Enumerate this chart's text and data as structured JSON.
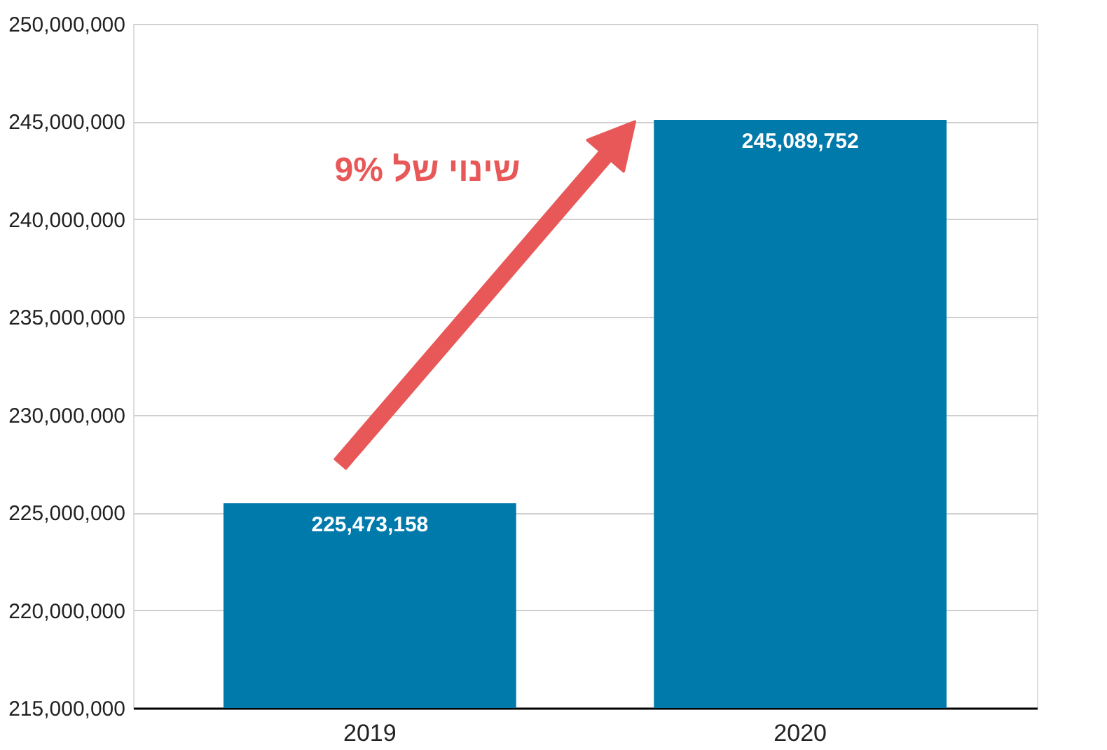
{
  "chart_data": {
    "type": "bar",
    "categories": [
      "2019",
      "2020"
    ],
    "values": [
      225473158,
      245089752
    ],
    "color": "#0079ab",
    "ylim": [
      215000000,
      250000000
    ],
    "yticks": [
      {
        "value": 215000000,
        "label": "215,000,000"
      },
      {
        "value": 220000000,
        "label": "220,000,000"
      },
      {
        "value": 225000000,
        "label": "225,000,000"
      },
      {
        "value": 230000000,
        "label": "230,000,000"
      },
      {
        "value": 235000000,
        "label": "235,000,000"
      },
      {
        "value": 240000000,
        "label": "240,000,000"
      },
      {
        "value": 245000000,
        "label": "245,000,000"
      },
      {
        "value": 250000000,
        "label": "250,000,000"
      }
    ],
    "value_labels": [
      "225,473,158",
      "245,089,752"
    ],
    "grid": "y",
    "annotations": [
      "שינוי של 9%"
    ]
  }
}
